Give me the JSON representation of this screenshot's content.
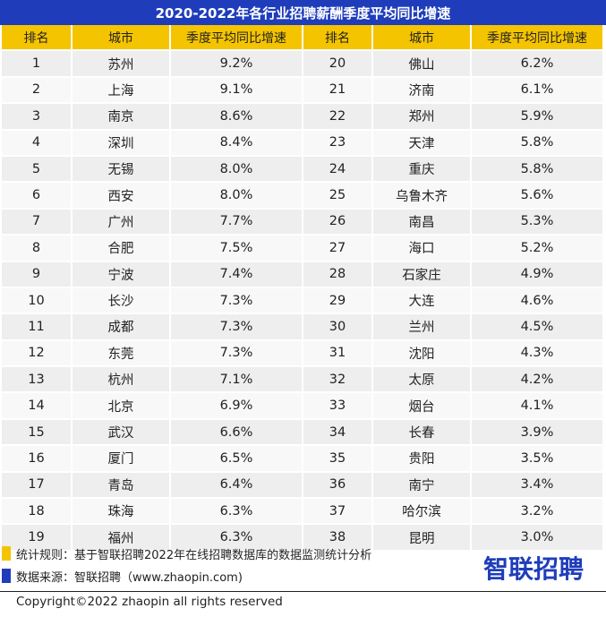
{
  "title": "2020-2022年各行业招聘薪酬季度平均同比增速",
  "headers": [
    "排名",
    "城市",
    "季度平均同比增速",
    "排名",
    "城市",
    "季度平均同比增速"
  ],
  "rows": [
    [
      "1",
      "苏州",
      "9.2%",
      "20",
      "佛山",
      "6.2%"
    ],
    [
      "2",
      "上海",
      "9.1%",
      "21",
      "济南",
      "6.1%"
    ],
    [
      "3",
      "南京",
      "8.6%",
      "22",
      "郑州",
      "5.9%"
    ],
    [
      "4",
      "深圳",
      "8.4%",
      "23",
      "天津",
      "5.8%"
    ],
    [
      "5",
      "无锡",
      "8.0%",
      "24",
      "重庆",
      "5.8%"
    ],
    [
      "6",
      "西安",
      "8.0%",
      "25",
      "乌鲁木齐",
      "5.6%"
    ],
    [
      "7",
      "广州",
      "7.7%",
      "26",
      "南昌",
      "5.3%"
    ],
    [
      "8",
      "合肥",
      "7.5%",
      "27",
      "海口",
      "5.2%"
    ],
    [
      "9",
      "宁波",
      "7.4%",
      "28",
      "石家庄",
      "4.9%"
    ],
    [
      "10",
      "长沙",
      "7.3%",
      "29",
      "大连",
      "4.6%"
    ],
    [
      "11",
      "成都",
      "7.3%",
      "30",
      "兰州",
      "4.5%"
    ],
    [
      "12",
      "东莞",
      "7.3%",
      "31",
      "沈阳",
      "4.3%"
    ],
    [
      "13",
      "杭州",
      "7.1%",
      "32",
      "太原",
      "4.2%"
    ],
    [
      "14",
      "北京",
      "6.9%",
      "33",
      "烟台",
      "4.1%"
    ],
    [
      "15",
      "武汉",
      "6.6%",
      "34",
      "长春",
      "3.9%"
    ],
    [
      "16",
      "厦门",
      "6.5%",
      "35",
      "贵阳",
      "3.5%"
    ],
    [
      "17",
      "青岛",
      "6.4%",
      "36",
      "南宁",
      "3.4%"
    ],
    [
      "18",
      "珠海",
      "6.3%",
      "37",
      "哈尔滨",
      "3.2%"
    ],
    [
      "19",
      "福州",
      "6.3%",
      "38",
      "昆明",
      "3.0%"
    ]
  ],
  "notes": {
    "method": "统计规则：基于智联招聘2022年在线招聘数据库的数据监测统计分析",
    "source": "数据来源：智联招聘（www.zhaopin.com)"
  },
  "colors": {
    "title_bg": "#1f3dbb",
    "header_bg": "#f5c400",
    "method_mark": "#f5c400",
    "source_mark": "#1f3dbb"
  },
  "logo": "智联招聘",
  "copyright": "Copyright©2022 zhaopin all rights reserved"
}
